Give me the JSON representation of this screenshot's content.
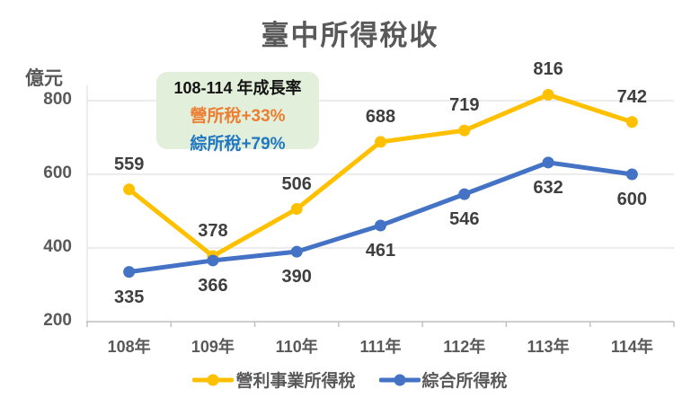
{
  "title": "臺中所得稅收",
  "annotation": {
    "title": "108-114 年成長率",
    "bg_color": "#E2EFDA",
    "lines": [
      {
        "text": "營所稅+33%",
        "color": "#ED7D31"
      },
      {
        "text": "綜所稅+79%",
        "color": "#2277C3"
      }
    ]
  },
  "chart_data": {
    "type": "line",
    "title": "臺中所得稅收",
    "ylabel": "億元",
    "xlabel": "",
    "categories": [
      "108年",
      "109年",
      "110年",
      "111年",
      "112年",
      "113年",
      "114年"
    ],
    "series": [
      {
        "name": "營利事業所得稅",
        "color": "#FFC000",
        "values": [
          559,
          378,
          506,
          688,
          719,
          816,
          742
        ],
        "label_position": "above"
      },
      {
        "name": "綜合所得稅",
        "color": "#4472C4",
        "values": [
          335,
          366,
          390,
          461,
          546,
          632,
          600
        ],
        "label_position": "below"
      }
    ],
    "yticks": [
      800,
      600,
      400,
      200
    ],
    "ylim": [
      200,
      860
    ],
    "grid": "horizontal",
    "grid_color": "#D9D9D9",
    "axis_color": "#BFBFBF",
    "legend_position": "bottom"
  }
}
